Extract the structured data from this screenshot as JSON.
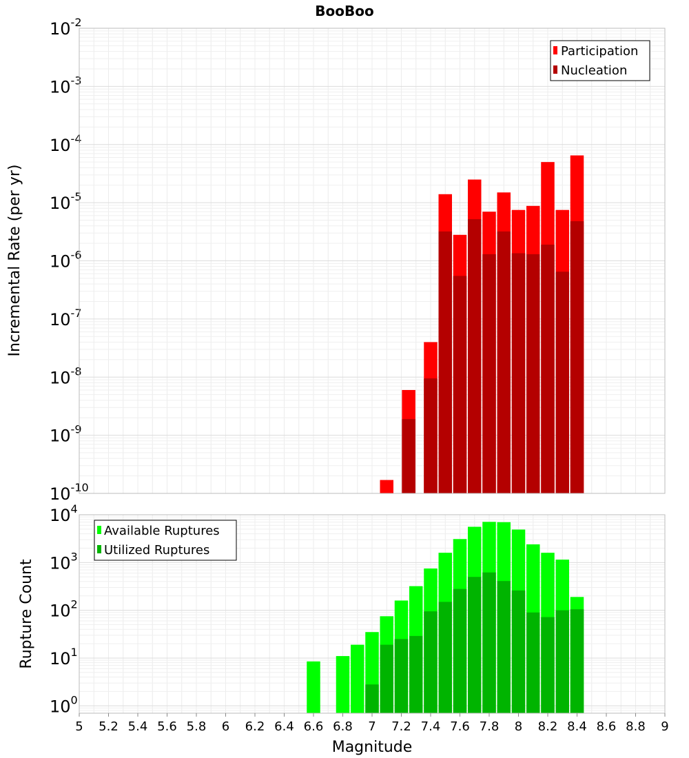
{
  "title": "BooBoo",
  "xlabel": "Magnitude",
  "colors": {
    "participation": "#ff0000",
    "nucleation": "#b40000",
    "available": "#00ff00",
    "utilized": "#00b400",
    "grid": "#e8e8e8",
    "frame": "#bbbbbb"
  },
  "chart_data": [
    {
      "type": "bar",
      "ylabel": "Incremental Rate (per yr)",
      "yscale": "log",
      "ylim": [
        1e-10,
        0.01
      ],
      "xlim": [
        5,
        9
      ],
      "legend_position": "top-right",
      "series": [
        {
          "name": "Participation",
          "color": "#ff0000",
          "points": [
            [
              7.1,
              1.7e-10
            ],
            [
              7.25,
              6e-09
            ],
            [
              7.4,
              4e-08
            ],
            [
              7.5,
              1.4e-05
            ],
            [
              7.6,
              2.8e-06
            ],
            [
              7.7,
              2.5e-05
            ],
            [
              7.8,
              7e-06
            ],
            [
              7.9,
              1.5e-05
            ],
            [
              8.0,
              7.5e-06
            ],
            [
              8.1,
              8.8e-06
            ],
            [
              8.2,
              5e-05
            ],
            [
              8.3,
              7.5e-06
            ],
            [
              8.4,
              6.5e-05
            ]
          ]
        },
        {
          "name": "Nucleation",
          "color": "#b40000",
          "points": [
            [
              7.25,
              1.9e-09
            ],
            [
              7.4,
              9.5e-09
            ],
            [
              7.5,
              3.2e-06
            ],
            [
              7.6,
              5.5e-07
            ],
            [
              7.7,
              5.2e-06
            ],
            [
              7.8,
              1.3e-06
            ],
            [
              7.9,
              3.2e-06
            ],
            [
              8.0,
              1.35e-06
            ],
            [
              8.1,
              1.3e-06
            ],
            [
              8.2,
              1.9e-06
            ],
            [
              8.3,
              6.5e-07
            ],
            [
              8.4,
              4.8e-06
            ]
          ]
        }
      ]
    },
    {
      "type": "bar",
      "ylabel": "Rupture Count",
      "yscale": "log",
      "ylim": [
        0.7,
        10000
      ],
      "xlim": [
        5,
        9
      ],
      "legend_position": "top-left",
      "series": [
        {
          "name": "Available Ruptures",
          "color": "#00ff00",
          "points": [
            [
              6.6,
              8.5
            ],
            [
              6.8,
              11
            ],
            [
              6.9,
              19
            ],
            [
              7.0,
              35
            ],
            [
              7.1,
              75
            ],
            [
              7.2,
              160
            ],
            [
              7.3,
              320
            ],
            [
              7.4,
              750
            ],
            [
              7.5,
              1600
            ],
            [
              7.6,
              3100
            ],
            [
              7.7,
              5600
            ],
            [
              7.8,
              7100
            ],
            [
              7.9,
              7000
            ],
            [
              8.0,
              4900
            ],
            [
              8.1,
              2400
            ],
            [
              8.2,
              1600
            ],
            [
              8.3,
              1150
            ],
            [
              8.4,
              190
            ]
          ]
        },
        {
          "name": "Utilized Ruptures",
          "color": "#00b400",
          "points": [
            [
              7.0,
              2.8
            ],
            [
              7.1,
              19
            ],
            [
              7.2,
              25
            ],
            [
              7.3,
              29
            ],
            [
              7.4,
              95
            ],
            [
              7.5,
              150
            ],
            [
              7.6,
              280
            ],
            [
              7.7,
              500
            ],
            [
              7.8,
              620
            ],
            [
              7.9,
              410
            ],
            [
              8.0,
              260
            ],
            [
              8.1,
              90
            ],
            [
              8.2,
              72
            ],
            [
              8.3,
              100
            ],
            [
              8.4,
              105
            ]
          ]
        }
      ]
    }
  ],
  "x_ticks": [
    "5",
    "5.2",
    "5.4",
    "5.6",
    "5.8",
    "6",
    "6.2",
    "6.4",
    "6.6",
    "6.8",
    "7",
    "7.2",
    "7.4",
    "7.6",
    "7.8",
    "8",
    "8.2",
    "8.4",
    "8.6",
    "8.8",
    "9"
  ],
  "top_ticks": [
    {
      "value": 0.01,
      "base": "10",
      "exp": "-2"
    },
    {
      "value": 0.001,
      "base": "10",
      "exp": "-3"
    },
    {
      "value": 0.0001,
      "base": "10",
      "exp": "-4"
    },
    {
      "value": 1e-05,
      "base": "10",
      "exp": "-5"
    },
    {
      "value": 1e-06,
      "base": "10",
      "exp": "-6"
    },
    {
      "value": 1e-07,
      "base": "10",
      "exp": "-7"
    },
    {
      "value": 1e-08,
      "base": "10",
      "exp": "-8"
    },
    {
      "value": 1e-09,
      "base": "10",
      "exp": "-9"
    },
    {
      "value": 1e-10,
      "base": "10",
      "exp": "-10"
    }
  ],
  "bottom_ticks": [
    {
      "value": 10000,
      "base": "10",
      "exp": "4"
    },
    {
      "value": 1000,
      "base": "10",
      "exp": "3"
    },
    {
      "value": 100,
      "base": "10",
      "exp": "2"
    },
    {
      "value": 10,
      "base": "10",
      "exp": "1"
    },
    {
      "value": 1,
      "base": "10",
      "exp": "0"
    }
  ]
}
